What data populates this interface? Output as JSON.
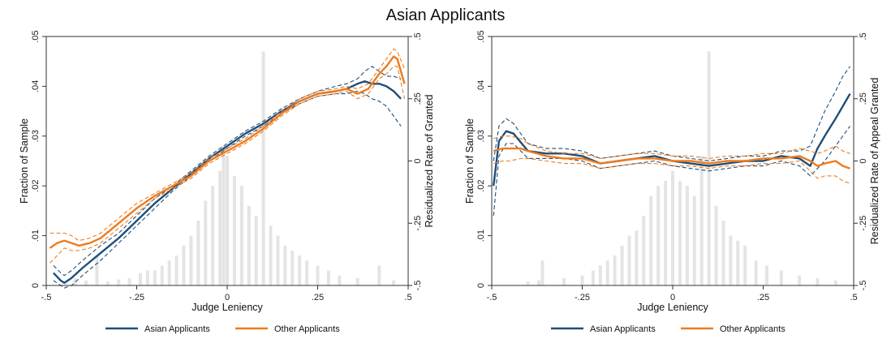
{
  "title": "Asian Applicants",
  "colors": {
    "asian": "#1f4e79",
    "other": "#ee7b1e",
    "histogram": "#e4e4e4",
    "frame": "#333333"
  },
  "chart_data": [
    {
      "type": "line",
      "histogram_type": "bar",
      "xlabel": "Judge Leniency",
      "ylabel_left": "Fraction of Sample",
      "ylabel_right": "Residualized Rate of Granted",
      "xlim": [
        -0.5,
        0.5
      ],
      "ylim_left": [
        0,
        0.05
      ],
      "ylim_right": [
        -0.5,
        0.5
      ],
      "xticks": [
        {
          "v": -0.5,
          "label": "-.5"
        },
        {
          "v": -0.25,
          "label": "-.25"
        },
        {
          "v": 0,
          "label": "0"
        },
        {
          "v": 0.25,
          "label": ".25"
        },
        {
          "v": 0.5,
          "label": ".5"
        }
      ],
      "yticks_left": [
        {
          "v": 0,
          "label": "0"
        },
        {
          "v": 0.01,
          "label": ".01"
        },
        {
          "v": 0.02,
          "label": ".02"
        },
        {
          "v": 0.03,
          "label": ".03"
        },
        {
          "v": 0.04,
          "label": ".04"
        },
        {
          "v": 0.05,
          "label": ".05"
        }
      ],
      "yticks_right": [
        {
          "v": -0.5,
          "label": "-.5"
        },
        {
          "v": -0.25,
          "label": "-.25"
        },
        {
          "v": 0,
          "label": "0"
        },
        {
          "v": 0.25,
          "label": ".25"
        },
        {
          "v": 0.5,
          "label": ".5"
        }
      ],
      "grid": false,
      "legend_position": "bottom",
      "histogram": {
        "x": [
          -0.42,
          -0.39,
          -0.36,
          -0.33,
          -0.3,
          -0.27,
          -0.24,
          -0.22,
          -0.2,
          -0.18,
          -0.16,
          -0.14,
          -0.12,
          -0.1,
          -0.08,
          -0.06,
          -0.04,
          -0.02,
          -0.01,
          0.0,
          0.02,
          0.04,
          0.06,
          0.08,
          0.1,
          0.12,
          0.14,
          0.16,
          0.18,
          0.2,
          0.22,
          0.25,
          0.28,
          0.31,
          0.36,
          0.42,
          0.46
        ],
        "values": [
          0.0015,
          0.001,
          0.006,
          0.0008,
          0.0012,
          0.0015,
          0.0025,
          0.003,
          0.003,
          0.004,
          0.005,
          0.006,
          0.008,
          0.01,
          0.013,
          0.017,
          0.02,
          0.023,
          0.028,
          0.026,
          0.022,
          0.02,
          0.016,
          0.014,
          0.047,
          0.012,
          0.01,
          0.008,
          0.007,
          0.006,
          0.005,
          0.004,
          0.003,
          0.002,
          0.0015,
          0.004,
          0.001
        ]
      },
      "series": [
        {
          "name": "Asian Applicants",
          "x": [
            -0.48,
            -0.46,
            -0.45,
            -0.43,
            -0.4,
            -0.35,
            -0.3,
            -0.25,
            -0.2,
            -0.15,
            -0.1,
            -0.05,
            0.0,
            0.05,
            0.1,
            0.15,
            0.2,
            0.25,
            0.3,
            0.33,
            0.36,
            0.38,
            0.4,
            0.42,
            0.44,
            0.46,
            0.48
          ],
          "y": [
            -0.45,
            -0.48,
            -0.49,
            -0.47,
            -0.43,
            -0.37,
            -0.31,
            -0.24,
            -0.17,
            -0.11,
            -0.05,
            0.01,
            0.06,
            0.11,
            0.15,
            0.2,
            0.24,
            0.27,
            0.28,
            0.29,
            0.31,
            0.32,
            0.31,
            0.31,
            0.3,
            0.28,
            0.25
          ],
          "ci_upper": [
            -0.42,
            -0.45,
            -0.46,
            -0.44,
            -0.4,
            -0.34,
            -0.29,
            -0.22,
            -0.15,
            -0.1,
            -0.04,
            0.02,
            0.07,
            0.12,
            0.16,
            0.21,
            0.25,
            0.28,
            0.3,
            0.31,
            0.33,
            0.36,
            0.38,
            0.36,
            0.34,
            0.34,
            0.33
          ],
          "ci_lower": [
            -0.48,
            -0.5,
            -0.51,
            -0.5,
            -0.46,
            -0.4,
            -0.33,
            -0.26,
            -0.19,
            -0.12,
            -0.06,
            0.0,
            0.05,
            0.1,
            0.14,
            0.19,
            0.23,
            0.26,
            0.27,
            0.27,
            0.28,
            0.27,
            0.25,
            0.24,
            0.22,
            0.18,
            0.14
          ]
        },
        {
          "name": "Other Applicants",
          "x": [
            -0.49,
            -0.47,
            -0.45,
            -0.43,
            -0.41,
            -0.38,
            -0.35,
            -0.3,
            -0.25,
            -0.2,
            -0.15,
            -0.1,
            -0.05,
            0.0,
            0.05,
            0.1,
            0.15,
            0.2,
            0.25,
            0.3,
            0.33,
            0.36,
            0.39,
            0.42,
            0.44,
            0.46,
            0.47,
            0.49
          ],
          "y": [
            -0.35,
            -0.33,
            -0.32,
            -0.33,
            -0.34,
            -0.33,
            -0.31,
            -0.25,
            -0.19,
            -0.14,
            -0.1,
            -0.06,
            0.0,
            0.04,
            0.08,
            0.13,
            0.19,
            0.24,
            0.27,
            0.28,
            0.29,
            0.27,
            0.29,
            0.35,
            0.38,
            0.42,
            0.41,
            0.31
          ],
          "ci_upper": [
            -0.29,
            -0.29,
            -0.29,
            -0.3,
            -0.32,
            -0.31,
            -0.29,
            -0.23,
            -0.17,
            -0.13,
            -0.09,
            -0.05,
            0.01,
            0.05,
            0.09,
            0.14,
            0.2,
            0.25,
            0.28,
            0.29,
            0.3,
            0.29,
            0.31,
            0.37,
            0.41,
            0.45,
            0.44,
            0.37
          ],
          "ci_lower": [
            -0.41,
            -0.38,
            -0.35,
            -0.36,
            -0.36,
            -0.35,
            -0.33,
            -0.27,
            -0.21,
            -0.15,
            -0.11,
            -0.07,
            -0.01,
            0.03,
            0.07,
            0.12,
            0.18,
            0.23,
            0.26,
            0.27,
            0.28,
            0.25,
            0.27,
            0.33,
            0.35,
            0.38,
            0.38,
            0.25
          ]
        }
      ]
    },
    {
      "type": "line",
      "histogram_type": "bar",
      "xlabel": "Judge Leniency",
      "ylabel_left": "Fraction of Sample",
      "ylabel_right": "Residualized Rate of Appeal Granted",
      "xlim": [
        -0.5,
        0.5
      ],
      "ylim_left": [
        0,
        0.05
      ],
      "ylim_right": [
        -0.5,
        0.5
      ],
      "xticks": [
        {
          "v": -0.5,
          "label": "-.5"
        },
        {
          "v": -0.25,
          "label": "-.25"
        },
        {
          "v": 0,
          "label": "0"
        },
        {
          "v": 0.25,
          "label": ".25"
        },
        {
          "v": 0.5,
          "label": ".5"
        }
      ],
      "yticks_left": [
        {
          "v": 0,
          "label": "0"
        },
        {
          "v": 0.01,
          "label": ".01"
        },
        {
          "v": 0.02,
          "label": ".02"
        },
        {
          "v": 0.03,
          "label": ".03"
        },
        {
          "v": 0.04,
          "label": ".04"
        },
        {
          "v": 0.05,
          "label": ".05"
        }
      ],
      "yticks_right": [
        {
          "v": -0.5,
          "label": "-.5"
        },
        {
          "v": -0.25,
          "label": "-.25"
        },
        {
          "v": 0,
          "label": "0"
        },
        {
          "v": 0.25,
          "label": ".25"
        },
        {
          "v": 0.5,
          "label": ".5"
        }
      ],
      "grid": false,
      "legend_position": "bottom",
      "histogram": {
        "x": [
          -0.4,
          -0.37,
          -0.36,
          -0.3,
          -0.25,
          -0.22,
          -0.2,
          -0.18,
          -0.16,
          -0.14,
          -0.12,
          -0.1,
          -0.08,
          -0.06,
          -0.04,
          -0.02,
          0.0,
          0.02,
          0.04,
          0.06,
          0.08,
          0.1,
          0.12,
          0.14,
          0.16,
          0.18,
          0.2,
          0.23,
          0.26,
          0.3,
          0.35,
          0.4,
          0.45
        ],
        "values": [
          0.0008,
          0.001,
          0.005,
          0.0015,
          0.002,
          0.003,
          0.004,
          0.005,
          0.006,
          0.008,
          0.01,
          0.011,
          0.014,
          0.018,
          0.02,
          0.021,
          0.023,
          0.021,
          0.02,
          0.018,
          0.026,
          0.047,
          0.016,
          0.013,
          0.01,
          0.009,
          0.008,
          0.005,
          0.004,
          0.003,
          0.002,
          0.0015,
          0.001
        ]
      },
      "series": [
        {
          "name": "Asian Applicants",
          "x": [
            -0.495,
            -0.48,
            -0.46,
            -0.44,
            -0.4,
            -0.35,
            -0.3,
            -0.25,
            -0.2,
            -0.15,
            -0.1,
            -0.05,
            0.0,
            0.05,
            0.1,
            0.15,
            0.2,
            0.25,
            0.3,
            0.35,
            0.38,
            0.4,
            0.42,
            0.45,
            0.47,
            0.49
          ],
          "y": [
            -0.1,
            0.08,
            0.12,
            0.11,
            0.04,
            0.03,
            0.03,
            0.02,
            -0.01,
            0.0,
            0.01,
            0.02,
            0.0,
            -0.01,
            -0.02,
            -0.01,
            0.0,
            0.0,
            0.02,
            0.01,
            -0.02,
            0.05,
            0.1,
            0.17,
            0.22,
            0.27
          ],
          "ci_upper": [
            0.0,
            0.14,
            0.17,
            0.15,
            0.07,
            0.05,
            0.05,
            0.04,
            0.01,
            0.02,
            0.03,
            0.04,
            0.02,
            0.01,
            0.0,
            0.01,
            0.02,
            0.02,
            0.04,
            0.04,
            0.06,
            0.13,
            0.2,
            0.28,
            0.34,
            0.38
          ],
          "ci_lower": [
            -0.22,
            0.02,
            0.07,
            0.07,
            0.01,
            0.01,
            0.01,
            0.0,
            -0.03,
            -0.02,
            -0.01,
            0.0,
            -0.02,
            -0.03,
            -0.04,
            -0.03,
            -0.02,
            -0.02,
            0.0,
            -0.02,
            -0.06,
            -0.03,
            0.0,
            0.06,
            0.1,
            0.14
          ]
        },
        {
          "name": "Other Applicants",
          "x": [
            -0.495,
            -0.47,
            -0.45,
            -0.42,
            -0.4,
            -0.35,
            -0.3,
            -0.25,
            -0.2,
            -0.15,
            -0.1,
            -0.05,
            0.0,
            0.05,
            0.1,
            0.15,
            0.2,
            0.25,
            0.3,
            0.35,
            0.38,
            0.4,
            0.42,
            0.45,
            0.47,
            0.49
          ],
          "y": [
            0.04,
            0.05,
            0.05,
            0.05,
            0.04,
            0.02,
            0.01,
            0.01,
            -0.01,
            0.0,
            0.01,
            0.01,
            0.0,
            0.0,
            -0.01,
            0.0,
            0.0,
            0.01,
            0.01,
            0.02,
            0.0,
            -0.02,
            -0.01,
            0.0,
            -0.02,
            -0.03
          ],
          "ci_upper": [
            0.09,
            0.1,
            0.1,
            0.09,
            0.07,
            0.04,
            0.03,
            0.03,
            0.01,
            0.02,
            0.03,
            0.03,
            0.02,
            0.02,
            0.01,
            0.02,
            0.02,
            0.03,
            0.03,
            0.05,
            0.04,
            0.03,
            0.04,
            0.06,
            0.04,
            0.03
          ],
          "ci_lower": [
            -0.01,
            0.0,
            0.0,
            0.01,
            0.01,
            0.0,
            -0.01,
            -0.01,
            -0.03,
            -0.02,
            -0.01,
            -0.01,
            -0.02,
            -0.02,
            -0.03,
            -0.02,
            -0.02,
            -0.01,
            -0.01,
            0.0,
            -0.04,
            -0.07,
            -0.06,
            -0.06,
            -0.08,
            -0.09
          ]
        }
      ]
    }
  ]
}
